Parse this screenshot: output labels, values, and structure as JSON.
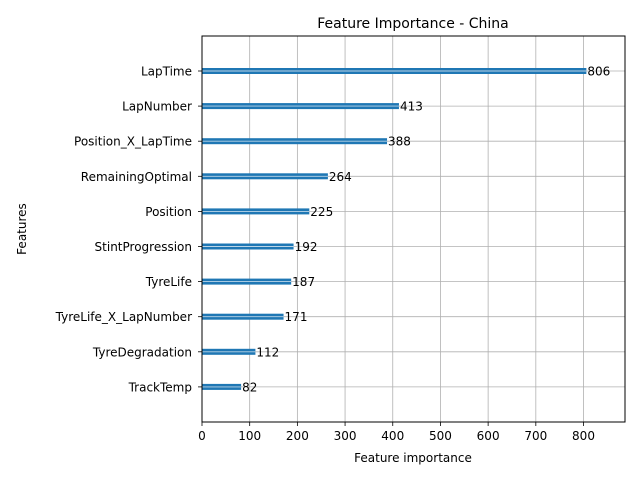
{
  "chart_data": {
    "type": "bar",
    "orientation": "horizontal",
    "title": "Feature Importance - China",
    "xlabel": "Feature importance",
    "ylabel": "Features",
    "categories": [
      "LapTime",
      "LapNumber",
      "Position_X_LapTime",
      "RemainingOptimal",
      "Position",
      "StintProgression",
      "TyreLife",
      "TyreLife_X_LapNumber",
      "TyreDegradation",
      "TrackTemp"
    ],
    "values": [
      806,
      413,
      388,
      264,
      225,
      192,
      187,
      171,
      112,
      82
    ],
    "data_labels": [
      "806",
      "413",
      "388",
      "264",
      "225",
      "192",
      "187",
      "171",
      "112",
      "82"
    ],
    "xlim": [
      0,
      887
    ],
    "xticks": [
      0,
      100,
      200,
      300,
      400,
      500,
      600,
      700,
      800
    ],
    "xtick_labels": [
      "0",
      "100",
      "200",
      "300",
      "400",
      "500",
      "600",
      "700",
      "800"
    ],
    "grid": true,
    "legend": "none",
    "bar_color": "#1f77b4",
    "grid_color": "#b0b0b0"
  }
}
